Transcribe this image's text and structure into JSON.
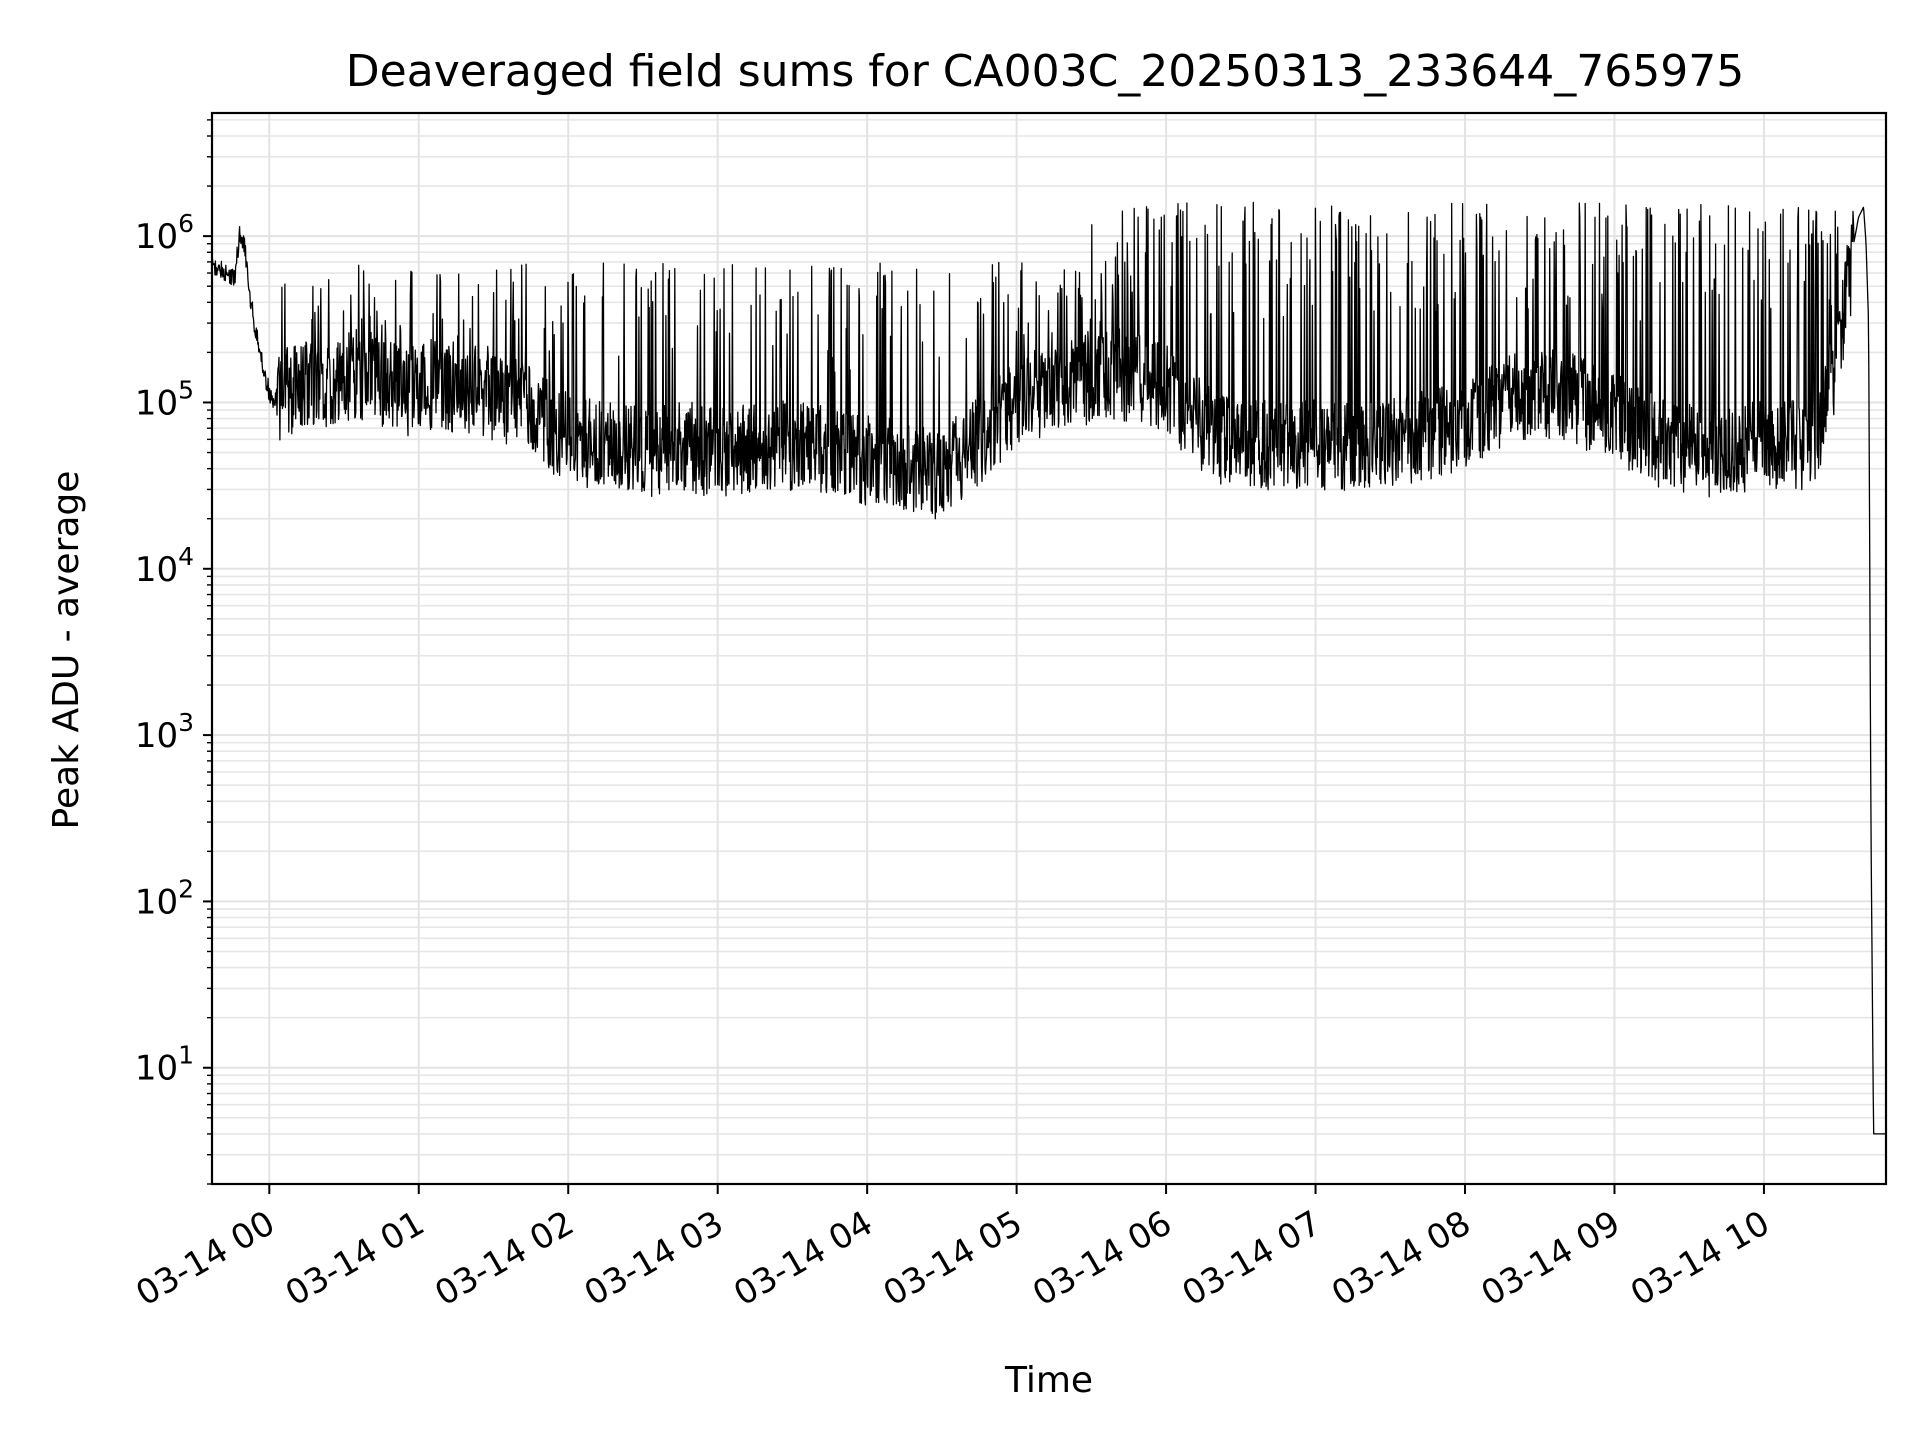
{
  "chart_data": {
    "type": "line",
    "title": "Deaveraged field sums for CA003C_20250313_233644_765975",
    "xlabel": "Time",
    "ylabel": "Peak ADU - average",
    "yscale": "log",
    "ylim": [
      2,
      5500000
    ],
    "xlim": [
      "2025-03-13 23:37",
      "2025-03-14 10:49"
    ],
    "grid": true,
    "line_color": "#000000",
    "x_tick_labels": [
      "03-14 00",
      "03-14 01",
      "03-14 02",
      "03-14 03",
      "03-14 04",
      "03-14 05",
      "03-14 06",
      "03-14 07",
      "03-14 08",
      "03-14 09",
      "03-14 10"
    ],
    "y_tick_labels": [
      {
        "base": "10",
        "exp": "1"
      },
      {
        "base": "10",
        "exp": "2"
      },
      {
        "base": "10",
        "exp": "3"
      },
      {
        "base": "10",
        "exp": "4"
      },
      {
        "base": "10",
        "exp": "5"
      },
      {
        "base": "10",
        "exp": "6"
      }
    ],
    "series": [
      {
        "x": [
          "2025-03-13 23:37",
          "2025-03-13 23:44",
          "2025-03-13 23:46",
          "2025-03-13 23:48",
          "2025-03-13 23:50",
          "2025-03-13 23:52",
          "2025-03-13 23:55",
          "2025-03-13 23:58",
          "2025-03-14 00:01",
          "2025-03-14 00:05",
          "2025-03-14 00:10",
          "2025-03-14 00:20",
          "2025-03-14 00:30",
          "2025-03-14 00:40",
          "2025-03-14 00:50",
          "2025-03-14 00:53",
          "2025-03-14 01:00",
          "2025-03-14 01:20",
          "2025-03-14 01:40",
          "2025-03-14 02:00",
          "2025-03-14 02:20",
          "2025-03-14 02:33",
          "2025-03-14 02:45",
          "2025-03-14 03:00",
          "2025-03-14 03:20",
          "2025-03-14 03:40",
          "2025-03-14 04:00",
          "2025-03-14 04:20",
          "2025-03-14 04:26",
          "2025-03-14 04:40",
          "2025-03-14 05:00",
          "2025-03-14 05:20",
          "2025-03-14 05:40",
          "2025-03-14 06:00",
          "2025-03-14 06:20",
          "2025-03-14 06:40",
          "2025-03-14 07:00",
          "2025-03-14 07:20",
          "2025-03-14 07:40",
          "2025-03-14 08:00",
          "2025-03-14 08:20",
          "2025-03-14 08:40",
          "2025-03-14 09:00",
          "2025-03-14 09:20",
          "2025-03-14 09:40",
          "2025-03-14 10:00",
          "2025-03-14 10:10",
          "2025-03-14 10:20",
          "2025-03-14 10:30",
          "2025-03-14 10:36",
          "2025-03-14 10:38",
          "2025-03-14 10:40",
          "2025-03-14 10:41",
          "2025-03-14 10:42",
          "2025-03-14 10:43",
          "2025-03-14 10:44",
          "2025-03-14 10:46",
          "2025-03-14 10:49"
        ],
        "y": [
          650000,
          600000,
          550000,
          1000000,
          900000,
          450000,
          250000,
          150000,
          100000,
          110000,
          120000,
          130000,
          140000,
          150000,
          120000,
          110000,
          130000,
          120000,
          100000,
          60000,
          55000,
          50000,
          55000,
          50000,
          55000,
          55000,
          45000,
          40000,
          35000,
          50000,
          100000,
          130000,
          150000,
          120000,
          60000,
          55000,
          55000,
          55000,
          60000,
          75000,
          110000,
          110000,
          80000,
          55000,
          50000,
          55000,
          55000,
          55000,
          200000,
          900000,
          1300000,
          1500000,
          900000,
          300000,
          250,
          4,
          4,
          4
        ]
      }
    ]
  }
}
